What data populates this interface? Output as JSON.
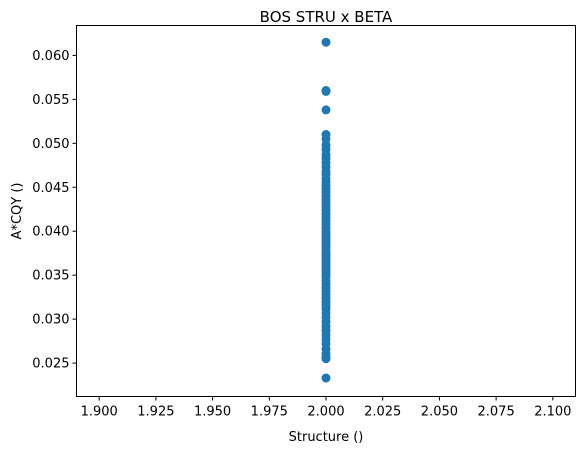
{
  "chart_data": {
    "type": "scatter",
    "title": "BOS STRU x BETA",
    "xlabel": "Structure ()",
    "ylabel": "A*CQY ()",
    "xlim": [
      1.89,
      2.11
    ],
    "ylim": [
      0.0212,
      0.0634
    ],
    "xticks": [
      "1.900",
      "1.925",
      "1.950",
      "1.975",
      "2.000",
      "2.025",
      "2.050",
      "2.075",
      "2.100"
    ],
    "yticks": [
      "0.025",
      "0.030",
      "0.035",
      "0.040",
      "0.045",
      "0.050",
      "0.055",
      "0.060"
    ],
    "grid": false,
    "marker_color": "#1f77b4",
    "series": [
      {
        "x": [
          2,
          2,
          2,
          2,
          2,
          2,
          2,
          2,
          2,
          2,
          2,
          2,
          2,
          2,
          2,
          2,
          2,
          2,
          2,
          2,
          2,
          2,
          2,
          2,
          2,
          2,
          2,
          2,
          2,
          2,
          2,
          2,
          2,
          2,
          2,
          2,
          2,
          2,
          2,
          2,
          2,
          2,
          2,
          2,
          2,
          2,
          2,
          2,
          2,
          2,
          2,
          2,
          2,
          2,
          2,
          2,
          2,
          2,
          2,
          2,
          2,
          2,
          2,
          2,
          2,
          2,
          2,
          2,
          2
        ],
        "y": [
          0.0615,
          0.056,
          0.0559,
          0.0538,
          0.051,
          0.0505,
          0.0498,
          0.0493,
          0.0487,
          0.0483,
          0.0478,
          0.0473,
          0.0468,
          0.0465,
          0.046,
          0.0456,
          0.0452,
          0.0448,
          0.0444,
          0.044,
          0.0436,
          0.0432,
          0.0428,
          0.0424,
          0.042,
          0.0416,
          0.0412,
          0.0408,
          0.0404,
          0.04,
          0.0397,
          0.0394,
          0.0391,
          0.0388,
          0.0385,
          0.0382,
          0.0378,
          0.0375,
          0.0372,
          0.0369,
          0.0366,
          0.0363,
          0.036,
          0.0357,
          0.0354,
          0.0351,
          0.0348,
          0.0344,
          0.034,
          0.0336,
          0.0332,
          0.0328,
          0.0324,
          0.032,
          0.0316,
          0.0312,
          0.0307,
          0.0302,
          0.0297,
          0.0292,
          0.0287,
          0.0282,
          0.0277,
          0.0272,
          0.0266,
          0.0261,
          0.0257,
          0.0255,
          0.0233
        ]
      }
    ]
  }
}
